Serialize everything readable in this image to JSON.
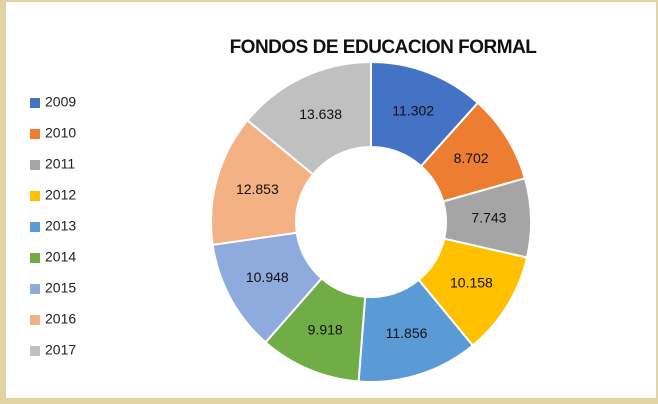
{
  "chart_data": {
    "type": "donut",
    "title": "FONDOS DE EDUCACION FORMAL",
    "categories": [
      "2009",
      "2010",
      "2011",
      "2012",
      "2013",
      "2014",
      "2015",
      "2016",
      "2017"
    ],
    "values": [
      11.302,
      8.702,
      7.743,
      10.158,
      11.856,
      9.918,
      10.948,
      12.853,
      13.638
    ],
    "colors": [
      "#4472c4",
      "#ed7d31",
      "#a5a5a5",
      "#ffc000",
      "#5b9bd5",
      "#70ad47",
      "#8faadc",
      "#f4b183",
      "#c0c0c0"
    ],
    "legend": "left"
  }
}
